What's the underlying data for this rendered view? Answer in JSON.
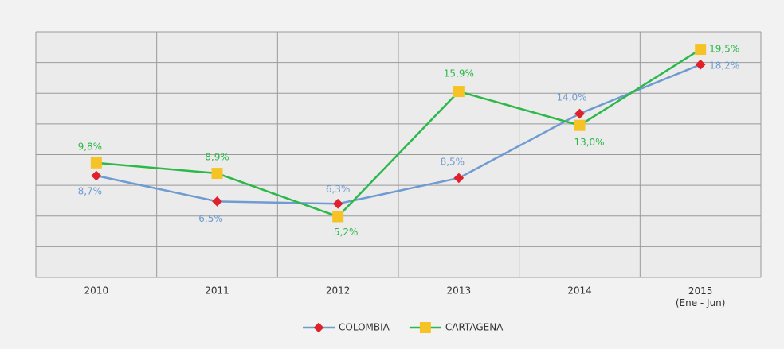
{
  "chart_data": {
    "type": "line",
    "categories": [
      "2010",
      "2011",
      "2012",
      "2013",
      "2014",
      "2015\n(Ene - Jun)"
    ],
    "ylim": [
      0,
      21
    ],
    "series": [
      {
        "name": "COLOMBIA",
        "color": "#6f9bd1",
        "marker_color": "#e0202a",
        "values": [
          8.7,
          6.5,
          6.3,
          8.5,
          14.0,
          18.2
        ],
        "value_labels": [
          "8,7%",
          "6,5%",
          "6,3%",
          "8,5%",
          "14,0%",
          "18,2%"
        ]
      },
      {
        "name": "CARTAGENA",
        "color": "#2db84a",
        "marker_color": "#f6c327",
        "values": [
          9.8,
          8.9,
          5.2,
          15.9,
          13.0,
          19.5
        ],
        "value_labels": [
          "9,8%",
          "8,9%",
          "5,2%",
          "15,9%",
          "13,0%",
          "19,5%"
        ]
      }
    ]
  }
}
